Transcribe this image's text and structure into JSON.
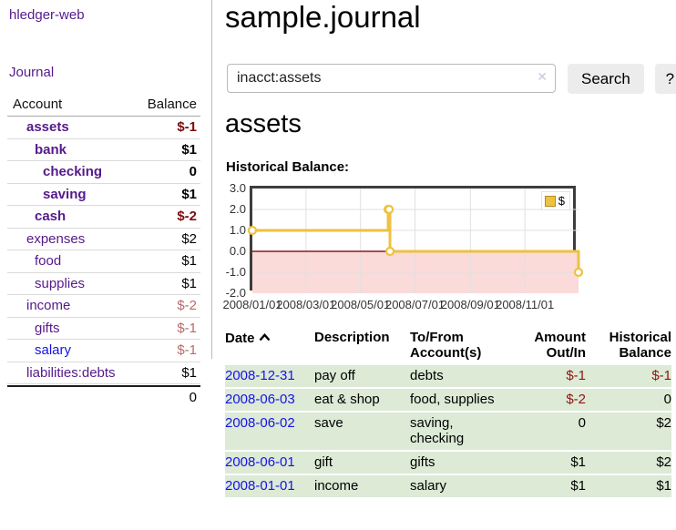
{
  "colors": {
    "accent_purple": "#551a8b",
    "link_blue": "#1613e9",
    "negative_strong": "#7d0c0c",
    "negative_soft": "#b96a6a",
    "table_negative": "#8f1414",
    "row_green": "#dcead6",
    "chart_gold": "#edc240",
    "chart_negative_region": "#fbdada",
    "chart_zero_line": "#8b1a1a"
  },
  "sidebar": {
    "brand": "hledger-web",
    "journal_label": "Journal",
    "header": {
      "account": "Account",
      "balance": "Balance"
    },
    "accounts": [
      {
        "name": "assets",
        "balance": "$-1",
        "level": 1,
        "strong": true,
        "balance_tone": "neg-strong"
      },
      {
        "name": "bank",
        "balance": "$1",
        "level": 2,
        "strong": true,
        "balance_tone": "pos"
      },
      {
        "name": "checking",
        "balance": "0",
        "level": 3,
        "strong": true,
        "balance_tone": "pos"
      },
      {
        "name": "saving",
        "balance": "$1",
        "level": 3,
        "strong": true,
        "balance_tone": "pos"
      },
      {
        "name": "cash",
        "balance": "$-2",
        "level": 2,
        "strong": true,
        "balance_tone": "neg-strong"
      },
      {
        "name": "expenses",
        "balance": "$2",
        "level": 1,
        "strong": false,
        "balance_tone": "pos"
      },
      {
        "name": "food",
        "balance": "$1",
        "level": 2,
        "strong": false,
        "balance_tone": "pos"
      },
      {
        "name": "supplies",
        "balance": "$1",
        "level": 2,
        "strong": false,
        "balance_tone": "pos"
      },
      {
        "name": "income",
        "balance": "$-2",
        "level": 1,
        "strong": false,
        "balance_tone": "neg-soft"
      },
      {
        "name": "gifts",
        "balance": "$-1",
        "level": 2,
        "strong": false,
        "balance_tone": "neg-soft"
      },
      {
        "name": "salary",
        "balance": "$-1",
        "level": 2,
        "strong": false,
        "balance_tone": "neg-soft",
        "link_color": "blue"
      },
      {
        "name": "liabilities:debts",
        "balance": "$1",
        "level": 1,
        "strong": false,
        "balance_tone": "pos"
      }
    ],
    "total": "0"
  },
  "main": {
    "title": "sample.journal",
    "search": {
      "value": "inacct:assets",
      "clear_icon": "✕",
      "button_label": "Search",
      "help_label": "?"
    },
    "account_heading": "assets",
    "chart_label": "Historical Balance:"
  },
  "chart_data": {
    "type": "line",
    "step": true,
    "title": "Historical Balance:",
    "legend": "$",
    "legend_position": "top-right",
    "grid": true,
    "series": [
      {
        "name": "$",
        "points": [
          [
            "2008-01-01",
            1
          ],
          [
            "2008-06-01",
            2
          ],
          [
            "2008-06-02",
            2
          ],
          [
            "2008-06-03",
            0
          ],
          [
            "2008-12-31",
            -1
          ]
        ]
      }
    ],
    "xlim": [
      "2008-01-01",
      "2008-12-31"
    ],
    "ylim": [
      -2,
      3
    ],
    "y_ticks": [
      "3.0",
      "2.0",
      "1.0",
      "0.0",
      "-1.0",
      "-2.0"
    ],
    "x_ticks": [
      "2008/01/01",
      "2008/03/01",
      "2008/05/01",
      "2008/07/01",
      "2008/09/01",
      "2008/11/01"
    ]
  },
  "register": {
    "headers": {
      "date": "Date",
      "description": "Description",
      "accounts": "To/From Account(s)",
      "amount": "Amount Out/In",
      "balance": "Historical Balance"
    },
    "rows": [
      {
        "date": "2008-12-31",
        "description": "pay off",
        "accounts": "debts",
        "amount": "$-1",
        "amount_tone": "neg",
        "balance": "$-1",
        "balance_tone": "neg"
      },
      {
        "date": "2008-06-03",
        "description": "eat & shop",
        "accounts": "food, supplies",
        "amount": "$-2",
        "amount_tone": "neg",
        "balance": "0",
        "balance_tone": "pos"
      },
      {
        "date": "2008-06-02",
        "description": "save",
        "accounts": "saving,\nchecking",
        "amount": "0",
        "amount_tone": "pos",
        "balance": "$2",
        "balance_tone": "pos"
      },
      {
        "date": "2008-06-01",
        "description": "gift",
        "accounts": "gifts",
        "amount": "$1",
        "amount_tone": "pos",
        "balance": "$2",
        "balance_tone": "pos"
      },
      {
        "date": "2008-01-01",
        "description": "income",
        "accounts": "salary",
        "amount": "$1",
        "amount_tone": "pos",
        "balance": "$1",
        "balance_tone": "pos"
      }
    ]
  }
}
